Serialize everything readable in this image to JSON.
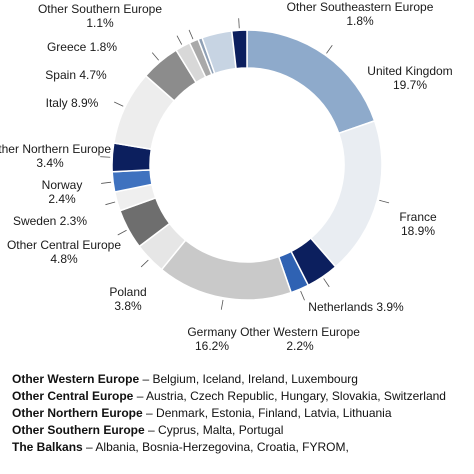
{
  "chart_data": {
    "type": "donut",
    "categories": [
      "United Kingdom",
      "France",
      "Netherlands",
      "Other Western Europe",
      "Germany",
      "Poland",
      "Other Central Europe",
      "Sweden",
      "Norway",
      "Other Northern Europe",
      "Italy",
      "Spain",
      "Greece",
      "Other Southern Europe",
      null,
      null,
      "Other Southeastern Europe"
    ],
    "values": [
      19.7,
      18.9,
      3.9,
      2.2,
      16.2,
      3.8,
      4.8,
      2.3,
      2.4,
      3.4,
      8.9,
      4.7,
      1.8,
      1.1,
      0.5,
      3.6,
      1.8
    ],
    "value_labels": [
      "19.7%",
      "18.9%",
      "3.9%",
      "2.2%",
      "16.2%",
      "3.8%",
      "4.8%",
      "2.3%",
      "2.4%",
      "3.4%",
      "8.9%",
      "4.7%",
      "1.8%",
      "1.1%",
      null,
      null,
      "1.8%"
    ],
    "colors": [
      "#8eaacb",
      "#e9edf2",
      "#0c1f5e",
      "#2f62b3",
      "#c9c9c9",
      "#e6e6e6",
      "#6e6e6e",
      "#efefef",
      "#3f72bf",
      "#0c1f5e",
      "#ededed",
      "#8c8c8c",
      "#d8d8d8",
      "#a9a9a9",
      "#8fa0b5",
      "#c7d4e3",
      "#0c1f5e"
    ]
  },
  "notes": [
    {
      "term": "Other Western Europe",
      "text": "– Belgium, Iceland, Ireland, Luxembourg"
    },
    {
      "term": "Other Central Europe",
      "text": "– Austria, Czech Republic, Hungary, Slovakia, Switzerland"
    },
    {
      "term": "Other Northern Europe",
      "text": "– Denmark, Estonia, Finland, Latvia, Lithuania"
    },
    {
      "term": "Other Southern Europe",
      "text": "– Cyprus, Malta, Portugal"
    },
    {
      "term": "The Balkans",
      "text": "– Albania, Bosnia-Herzegovina, Croatia, FYROM,"
    }
  ]
}
